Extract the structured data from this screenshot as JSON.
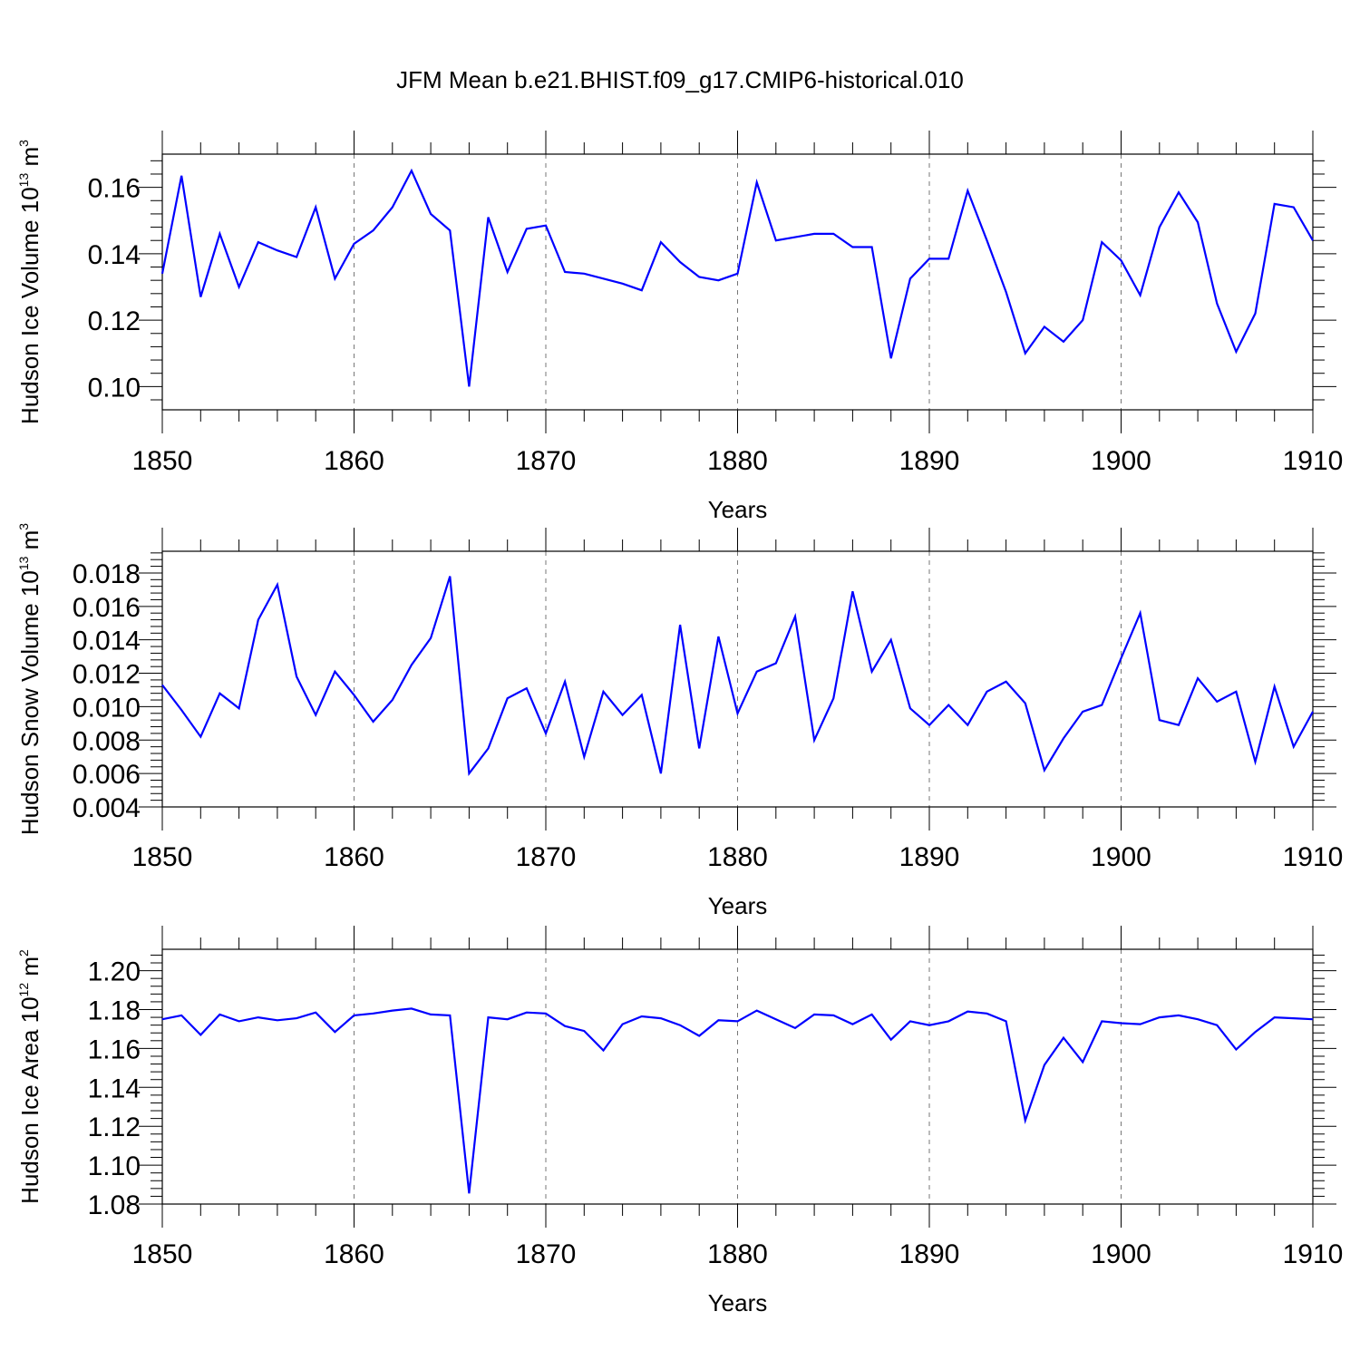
{
  "title": "JFM Mean b.e21.BHIST.f09_g17.CMIP6-historical.010",
  "colors": {
    "line": "#0000ff",
    "axis": "#000000",
    "grid": "#777777"
  },
  "chart_data": [
    {
      "type": "line",
      "xlabel": "Years",
      "ylabel": {
        "text": "Hudson Ice Volume",
        "base": "10",
        "exp": "13",
        "unit": "m",
        "unit_exp": "3"
      },
      "xlim": [
        1850,
        1910
      ],
      "ylim": [
        0.093,
        0.17
      ],
      "yticks": [
        0.1,
        0.12,
        0.14,
        0.16
      ],
      "ytick_labels": [
        "0.10",
        "0.12",
        "0.14",
        "0.16"
      ],
      "xticks": [
        1850,
        1860,
        1870,
        1880,
        1890,
        1900,
        1910
      ],
      "xtick_labels": [
        "1850",
        "1860",
        "1870",
        "1880",
        "1890",
        "1900",
        "1910"
      ],
      "grid": "vertical dashed at major x ticks",
      "x_start": 1850,
      "values": [
        0.134,
        0.1635,
        0.127,
        0.146,
        0.13,
        0.1435,
        0.141,
        0.139,
        0.154,
        0.1325,
        0.143,
        0.147,
        0.154,
        0.165,
        0.152,
        0.147,
        0.1,
        0.151,
        0.1345,
        0.1475,
        0.1485,
        0.1345,
        0.134,
        0.1325,
        0.131,
        0.129,
        0.1435,
        0.1375,
        0.133,
        0.132,
        0.134,
        0.1615,
        0.144,
        0.145,
        0.146,
        0.146,
        0.142,
        0.142,
        0.1085,
        0.1325,
        0.1385,
        0.1385,
        0.159,
        0.144,
        0.1285,
        0.11,
        0.118,
        0.1135,
        0.12,
        0.1435,
        0.138,
        0.1275,
        0.148,
        0.1585,
        0.1495,
        0.125,
        0.1105,
        0.122,
        0.155,
        0.154,
        0.144
      ]
    },
    {
      "type": "line",
      "xlabel": "Years",
      "ylabel": {
        "text": "Hudson Snow Volume",
        "base": "10",
        "exp": "13",
        "unit": "m",
        "unit_exp": "3"
      },
      "xlim": [
        1850,
        1910
      ],
      "ylim": [
        0.004,
        0.0193
      ],
      "yticks": [
        0.004,
        0.006,
        0.008,
        0.01,
        0.012,
        0.014,
        0.016,
        0.018
      ],
      "ytick_labels": [
        "0.004",
        "0.006",
        "0.008",
        "0.010",
        "0.012",
        "0.014",
        "0.016",
        "0.018"
      ],
      "xticks": [
        1850,
        1860,
        1870,
        1880,
        1890,
        1900,
        1910
      ],
      "xtick_labels": [
        "1850",
        "1860",
        "1870",
        "1880",
        "1890",
        "1900",
        "1910"
      ],
      "grid": "vertical dashed at major x ticks",
      "x_start": 1850,
      "values": [
        0.0113,
        0.0098,
        0.0082,
        0.0108,
        0.0099,
        0.0152,
        0.0173,
        0.0118,
        0.0095,
        0.0121,
        0.0107,
        0.0091,
        0.0104,
        0.0125,
        0.0141,
        0.0178,
        0.006,
        0.0075,
        0.0105,
        0.0111,
        0.0084,
        0.0115,
        0.007,
        0.0109,
        0.0095,
        0.0107,
        0.006,
        0.0149,
        0.0075,
        0.0142,
        0.0096,
        0.0121,
        0.0126,
        0.0154,
        0.008,
        0.0105,
        0.0169,
        0.0121,
        0.014,
        0.0099,
        0.0089,
        0.0101,
        0.0089,
        0.0109,
        0.0115,
        0.0102,
        0.0062,
        0.0081,
        0.0097,
        0.0101,
        0.0129,
        0.0156,
        0.0092,
        0.0089,
        0.0117,
        0.0103,
        0.0109,
        0.0067,
        0.0112,
        0.0076,
        0.0097
      ]
    },
    {
      "type": "line",
      "xlabel": "Years",
      "ylabel": {
        "text": "Hudson Ice Area",
        "base": "10",
        "exp": "12",
        "unit": "m",
        "unit_exp": "2"
      },
      "xlim": [
        1850,
        1910
      ],
      "ylim": [
        1.08,
        1.211
      ],
      "yticks": [
        1.08,
        1.1,
        1.12,
        1.14,
        1.16,
        1.18,
        1.2
      ],
      "ytick_labels": [
        "1.08",
        "1.10",
        "1.12",
        "1.14",
        "1.16",
        "1.18",
        "1.20"
      ],
      "xticks": [
        1850,
        1860,
        1870,
        1880,
        1890,
        1900,
        1910
      ],
      "xtick_labels": [
        "1850",
        "1860",
        "1870",
        "1880",
        "1890",
        "1900",
        "1910"
      ],
      "grid": "vertical dashed at major x ticks",
      "x_start": 1850,
      "values": [
        1.175,
        1.177,
        1.167,
        1.1775,
        1.174,
        1.176,
        1.1745,
        1.1755,
        1.1785,
        1.1685,
        1.177,
        1.178,
        1.1795,
        1.1805,
        1.1775,
        1.177,
        1.0855,
        1.176,
        1.175,
        1.1785,
        1.178,
        1.1715,
        1.169,
        1.159,
        1.1725,
        1.1765,
        1.1755,
        1.172,
        1.1665,
        1.1745,
        1.174,
        1.1795,
        1.175,
        1.1705,
        1.1775,
        1.177,
        1.1725,
        1.1775,
        1.1645,
        1.174,
        1.172,
        1.174,
        1.179,
        1.178,
        1.174,
        1.123,
        1.1515,
        1.1655,
        1.153,
        1.174,
        1.173,
        1.1725,
        1.176,
        1.177,
        1.175,
        1.172,
        1.1595,
        1.1685,
        1.176,
        1.1755,
        1.175
      ]
    }
  ]
}
